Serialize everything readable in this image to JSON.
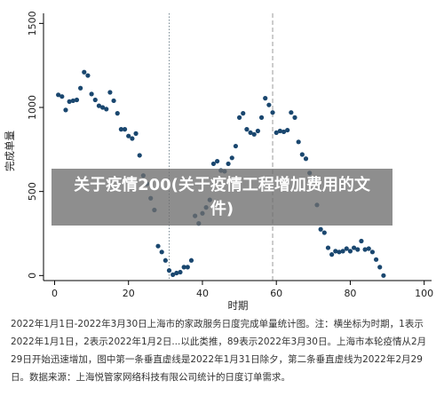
{
  "banner": {
    "text": "关于疫情200(关于疫情工程增加费用的文件)"
  },
  "caption": {
    "text": "2022年1月1日-2022年3月30日上海市的家政服务日度完成单量统计图。注：横坐标为时期，1表示2022年1月1日，2表示2022年1月2日...以此类推，89表示2022年3月30日。上海市本轮疫情从2月29日开始迅速增加，图中第一条垂直虚线是2022年1月31日除夕，第二条垂直虚线为2022年2月29日。数据来源：上海悦管家网络科技有限公司统计的日度订单需求。"
  },
  "chart_data": {
    "type": "scatter",
    "xlabel": "时期",
    "ylabel": "完成单量",
    "xlim": [
      -3,
      102
    ],
    "ylim": [
      -30,
      1560
    ],
    "xticks": [
      0,
      20,
      40,
      60,
      80,
      100
    ],
    "yticks": [
      0,
      500,
      1000,
      1500
    ],
    "vlines": [
      {
        "x": 31,
        "style": "dotted",
        "color": "#7a8b94"
      },
      {
        "x": 59,
        "style": "dashed",
        "color": "#9a9a9a"
      }
    ],
    "marker_color": "#1a476f",
    "points": [
      [
        1,
        1075
      ],
      [
        2,
        1065
      ],
      [
        3,
        985
      ],
      [
        4,
        1035
      ],
      [
        5,
        1040
      ],
      [
        6,
        1045
      ],
      [
        7,
        1115
      ],
      [
        8,
        1210
      ],
      [
        9,
        1190
      ],
      [
        10,
        1080
      ],
      [
        11,
        1045
      ],
      [
        12,
        1010
      ],
      [
        13,
        1000
      ],
      [
        14,
        990
      ],
      [
        15,
        1090
      ],
      [
        16,
        1040
      ],
      [
        17,
        965
      ],
      [
        18,
        870
      ],
      [
        19,
        870
      ],
      [
        20,
        830
      ],
      [
        21,
        815
      ],
      [
        22,
        845
      ],
      [
        23,
        715
      ],
      [
        24,
        595
      ],
      [
        25,
        545
      ],
      [
        26,
        460
      ],
      [
        27,
        390
      ],
      [
        28,
        175
      ],
      [
        29,
        140
      ],
      [
        30,
        90
      ],
      [
        31,
        30
      ],
      [
        32,
        5
      ],
      [
        33,
        15
      ],
      [
        34,
        20
      ],
      [
        35,
        50
      ],
      [
        36,
        50
      ],
      [
        37,
        90
      ],
      [
        38,
        355
      ],
      [
        39,
        310
      ],
      [
        40,
        370
      ],
      [
        41,
        405
      ],
      [
        42,
        450
      ],
      [
        43,
        665
      ],
      [
        44,
        680
      ],
      [
        45,
        625
      ],
      [
        46,
        620
      ],
      [
        47,
        665
      ],
      [
        48,
        700
      ],
      [
        49,
        770
      ],
      [
        50,
        940
      ],
      [
        51,
        965
      ],
      [
        52,
        870
      ],
      [
        53,
        850
      ],
      [
        54,
        840
      ],
      [
        55,
        860
      ],
      [
        56,
        940
      ],
      [
        57,
        1055
      ],
      [
        58,
        1015
      ],
      [
        59,
        970
      ],
      [
        60,
        850
      ],
      [
        61,
        860
      ],
      [
        62,
        855
      ],
      [
        63,
        865
      ],
      [
        64,
        970
      ],
      [
        65,
        940
      ],
      [
        66,
        795
      ],
      [
        67,
        720
      ],
      [
        68,
        695
      ],
      [
        69,
        610
      ],
      [
        70,
        575
      ],
      [
        71,
        420
      ],
      [
        72,
        275
      ],
      [
        73,
        255
      ],
      [
        74,
        165
      ],
      [
        75,
        125
      ],
      [
        76,
        145
      ],
      [
        77,
        140
      ],
      [
        78,
        145
      ],
      [
        79,
        160
      ],
      [
        80,
        145
      ],
      [
        81,
        165
      ],
      [
        82,
        155
      ],
      [
        83,
        205
      ],
      [
        84,
        155
      ],
      [
        85,
        160
      ],
      [
        86,
        140
      ],
      [
        87,
        95
      ],
      [
        88,
        50
      ],
      [
        89,
        0
      ]
    ]
  }
}
